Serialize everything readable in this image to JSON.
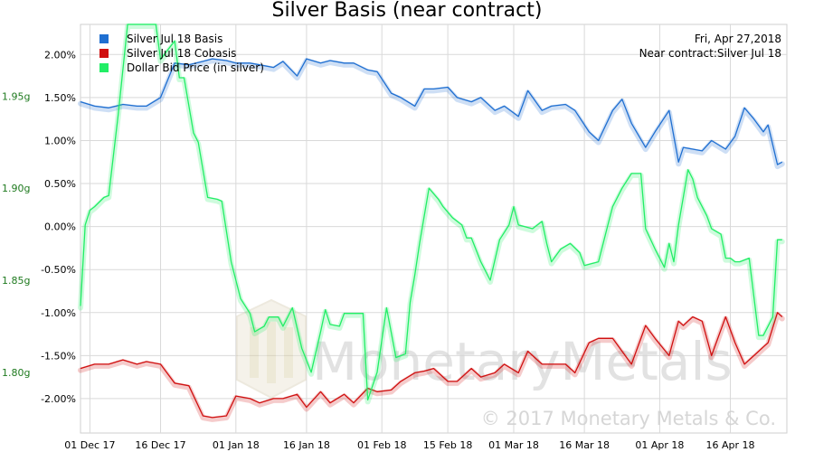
{
  "colors": {
    "basis": "#1f6fd1",
    "cobasis": "#d01010",
    "price": "#22ee66",
    "grid": "#d9d9d9",
    "axis_left_text": "#1f7a1f"
  },
  "chart_data": {
    "type": "line",
    "title": "Silver Basis (near contract)",
    "annotations": {
      "date": "Fri, Apr 27,2018",
      "contract": "Near contract:Silver Jul 18"
    },
    "watermark": {
      "text": "MonetaryMetals",
      "copyright": "© 2017 Monetary Metals & Co."
    },
    "x_ticks": [
      "01 Dec 17",
      "16 Dec 17",
      "01 Jan 18",
      "16 Jan 18",
      "01 Feb 18",
      "15 Feb 18",
      "01 Mar 18",
      "16 Mar 18",
      "01 Apr 18",
      "16 Apr 18"
    ],
    "x_tick_days": [
      2,
      17,
      33,
      48,
      64,
      78,
      92,
      107,
      123,
      138
    ],
    "xlim": [
      0,
      150
    ],
    "right_axis": {
      "ticks": [
        "2.00%",
        "1.50%",
        "1.00%",
        "0.50%",
        "0.00%",
        "-0.50%",
        "-1.00%",
        "-1.50%",
        "-2.00%"
      ],
      "tick_values": [
        2.0,
        1.5,
        1.0,
        0.5,
        0.0,
        -0.5,
        -1.0,
        -1.5,
        -2.0
      ],
      "ylim": [
        -2.4,
        2.35
      ]
    },
    "left_axis": {
      "ticks": [
        "1.95g",
        "1.90g",
        "1.85g",
        "1.80g"
      ],
      "tick_values": [
        1.95,
        1.9,
        1.85,
        1.8
      ],
      "ylim": [
        1.767,
        1.989
      ]
    },
    "series": [
      {
        "name": "Silver Jul 18 Basis",
        "axis": "right",
        "x": [
          0,
          3,
          6,
          9,
          12,
          14,
          17,
          20,
          23,
          26,
          28,
          31,
          33,
          36,
          38,
          41,
          43,
          46,
          48,
          51,
          53,
          56,
          58,
          61,
          63,
          66,
          68,
          71,
          73,
          75,
          78,
          80,
          83,
          85,
          88,
          90,
          93,
          95,
          98,
          100,
          103,
          105,
          108,
          110,
          113,
          115,
          117,
          120,
          122,
          125,
          127,
          128,
          130,
          132,
          134,
          137,
          139,
          141,
          143,
          145,
          146,
          148,
          149
        ],
        "values": [
          1.45,
          1.4,
          1.38,
          1.42,
          1.4,
          1.4,
          1.5,
          1.9,
          1.88,
          1.92,
          1.95,
          1.93,
          1.9,
          1.9,
          1.88,
          1.85,
          1.92,
          1.75,
          1.95,
          1.9,
          1.93,
          1.9,
          1.9,
          1.82,
          1.8,
          1.55,
          1.5,
          1.4,
          1.6,
          1.6,
          1.62,
          1.5,
          1.45,
          1.5,
          1.35,
          1.4,
          1.28,
          1.58,
          1.35,
          1.4,
          1.42,
          1.35,
          1.1,
          1.0,
          1.35,
          1.48,
          1.2,
          0.92,
          1.1,
          1.35,
          0.75,
          0.92,
          0.9,
          0.88,
          1.0,
          0.9,
          1.05,
          1.38,
          1.25,
          1.1,
          1.18,
          0.72,
          0.75
        ]
      },
      {
        "name": "Silver Jul 18 Cobasis",
        "axis": "right",
        "x": [
          0,
          3,
          6,
          9,
          12,
          14,
          17,
          20,
          23,
          26,
          28,
          31,
          33,
          36,
          38,
          41,
          43,
          46,
          48,
          51,
          53,
          56,
          58,
          61,
          63,
          66,
          68,
          71,
          73,
          75,
          78,
          80,
          83,
          85,
          88,
          90,
          93,
          95,
          98,
          100,
          103,
          105,
          108,
          110,
          113,
          115,
          117,
          120,
          122,
          125,
          127,
          128,
          130,
          132,
          134,
          137,
          139,
          141,
          143,
          145,
          146,
          148,
          149
        ],
        "values": [
          -1.65,
          -1.6,
          -1.6,
          -1.55,
          -1.6,
          -1.57,
          -1.6,
          -1.82,
          -1.85,
          -2.2,
          -2.22,
          -2.2,
          -1.97,
          -2.0,
          -2.05,
          -2.0,
          -2.0,
          -1.95,
          -2.1,
          -1.92,
          -2.05,
          -1.95,
          -2.05,
          -1.88,
          -1.92,
          -1.9,
          -1.8,
          -1.7,
          -1.68,
          -1.65,
          -1.8,
          -1.8,
          -1.65,
          -1.75,
          -1.7,
          -1.6,
          -1.7,
          -1.45,
          -1.6,
          -1.6,
          -1.6,
          -1.7,
          -1.35,
          -1.3,
          -1.3,
          -1.45,
          -1.6,
          -1.15,
          -1.3,
          -1.5,
          -1.1,
          -1.15,
          -1.05,
          -1.1,
          -1.5,
          -1.05,
          -1.35,
          -1.6,
          -1.5,
          -1.4,
          -1.35,
          -1.0,
          -1.05
        ]
      },
      {
        "name": "Dollar Bid Price (in silver)",
        "axis": "left",
        "x": [
          0,
          1,
          2,
          3,
          5,
          6,
          8,
          10,
          11,
          16,
          17,
          20,
          21,
          22,
          24,
          25,
          27,
          29,
          30,
          32,
          34,
          36,
          37,
          39,
          40,
          41,
          42,
          43,
          45,
          47,
          49,
          51,
          52,
          53,
          55,
          56,
          58,
          59,
          60,
          61,
          63,
          65,
          67,
          69,
          70,
          71,
          72,
          74,
          76,
          77,
          79,
          81,
          82,
          83,
          85,
          87,
          89,
          91,
          92,
          93,
          96,
          98,
          99,
          100,
          102,
          104,
          106,
          107,
          110,
          111,
          112,
          113,
          115,
          117,
          119,
          120,
          122,
          124,
          125,
          126,
          127,
          129,
          130,
          131,
          133,
          134,
          136,
          137,
          138,
          139,
          140,
          142,
          144,
          145,
          147,
          148,
          149
        ],
        "values": [
          1.836,
          1.88,
          1.888,
          1.89,
          1.895,
          1.896,
          1.94,
          1.99,
          1.99,
          1.99,
          1.97,
          1.98,
          1.96,
          1.96,
          1.93,
          1.925,
          1.895,
          1.894,
          1.893,
          1.86,
          1.84,
          1.832,
          1.822,
          1.825,
          1.83,
          1.83,
          1.83,
          1.825,
          1.835,
          1.813,
          1.8,
          1.822,
          1.834,
          1.826,
          1.825,
          1.832,
          1.832,
          1.832,
          1.832,
          1.785,
          1.8,
          1.835,
          1.808,
          1.81,
          1.838,
          1.853,
          1.87,
          1.9,
          1.894,
          1.89,
          1.884,
          1.88,
          1.873,
          1.873,
          1.86,
          1.85,
          1.872,
          1.88,
          1.89,
          1.88,
          1.878,
          1.882,
          1.87,
          1.86,
          1.867,
          1.87,
          1.865,
          1.858,
          1.86,
          1.87,
          1.88,
          1.89,
          1.9,
          1.908,
          1.908,
          1.878,
          1.867,
          1.857,
          1.87,
          1.86,
          1.88,
          1.91,
          1.905,
          1.895,
          1.885,
          1.878,
          1.875,
          1.862,
          1.862,
          1.86,
          1.86,
          1.862,
          1.82,
          1.82,
          1.83,
          1.872,
          1.872
        ]
      }
    ]
  }
}
